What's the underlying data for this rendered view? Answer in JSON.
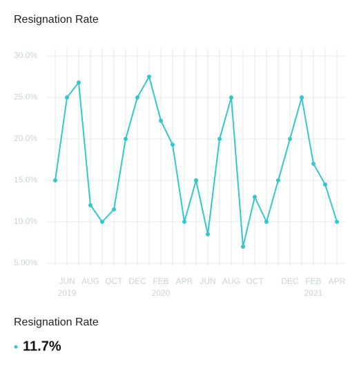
{
  "chart_data": {
    "type": "line",
    "title": "Resignation Rate",
    "categories": [
      null,
      "JUN",
      null,
      "AUG",
      null,
      "OCT",
      null,
      "DEC",
      null,
      "FEB",
      null,
      "APR",
      null,
      "JUN",
      null,
      "AUG",
      null,
      "OCT",
      null,
      null,
      "DEC",
      null,
      "FEB",
      null,
      "APR"
    ],
    "category_years": [
      null,
      "2019",
      null,
      null,
      null,
      null,
      null,
      null,
      null,
      "2020",
      null,
      null,
      null,
      null,
      null,
      null,
      null,
      null,
      null,
      null,
      null,
      null,
      "2021",
      null,
      null
    ],
    "series": [
      {
        "name": "Resignation Rate",
        "color": "#33c7cc",
        "values": [
          15,
          25,
          26.8,
          12,
          10,
          11.5,
          20,
          25,
          27.5,
          22.2,
          19.3,
          10,
          15,
          8.5,
          20,
          25,
          7,
          13,
          10,
          15,
          20,
          25,
          17,
          14.5,
          10
        ]
      }
    ],
    "ylim": [
      5,
      30
    ],
    "yticks": [
      {
        "value": 5,
        "label": "5.00%"
      },
      {
        "value": 10,
        "label": "10.0%"
      },
      {
        "value": 15,
        "label": "15.0%"
      },
      {
        "value": 20,
        "label": "20.0%"
      },
      {
        "value": 25,
        "label": "25.0%"
      },
      {
        "value": 30,
        "label": "30.0%"
      }
    ],
    "grid": true,
    "summary_value": "11.7%"
  }
}
